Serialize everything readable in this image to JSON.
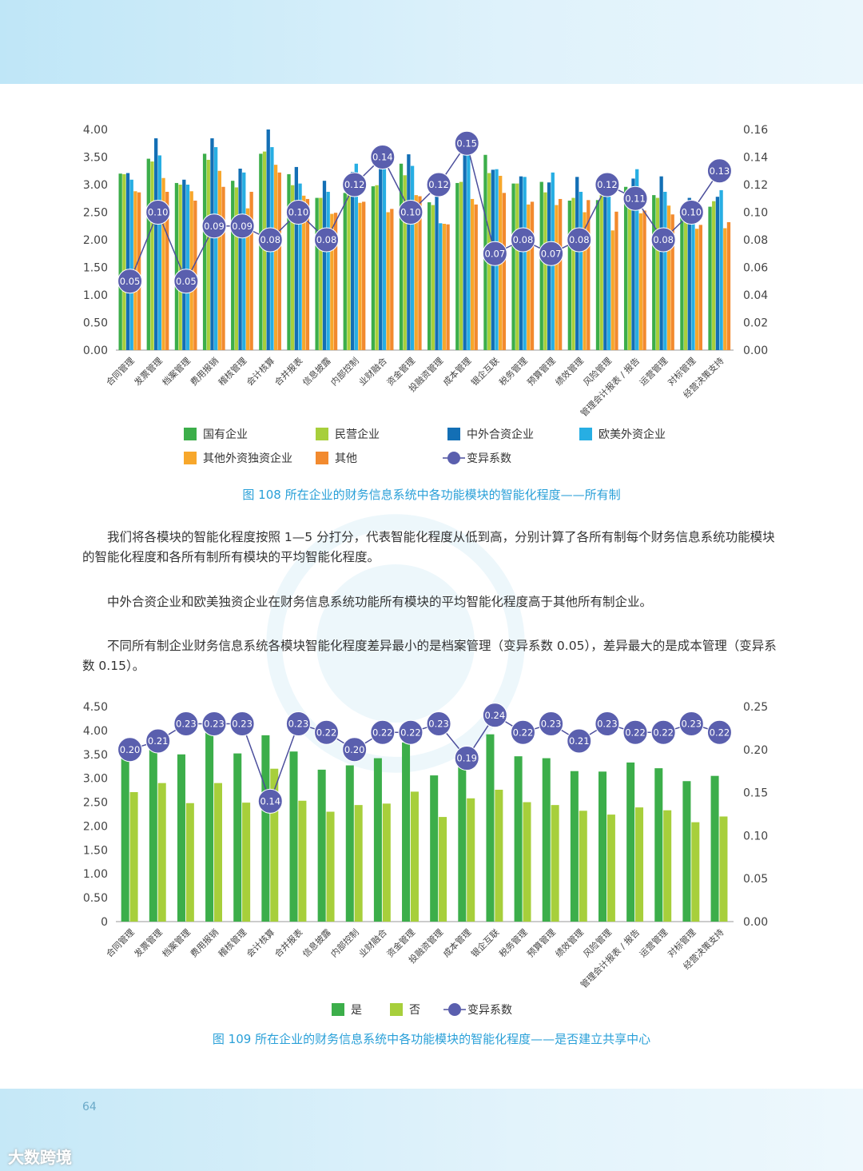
{
  "page_number": "64",
  "footer_logo": "大数跨境",
  "figure108": {
    "caption": "图 108   所在企业的财务信息系统中各功能模块的智能化程度——所有制"
  },
  "figure109": {
    "caption": "图 109   所在企业的财务信息系统中各功能模块的智能化程度——是否建立共享中心"
  },
  "paragraphs": [
    "我们将各模块的智能化程度按照 1—5 分打分，代表智能化程度从低到高，分别计算了各所有制每个财务信息系统功能模块的智能化程度和各所有制所有模块的平均智能化程度。",
    "中外合资企业和欧美独资企业在财务信息系统功能所有模块的平均智能化程度高于其他所有制企业。",
    "不同所有制企业财务信息系统各模块智能化程度差异最小的是档案管理（变异系数 0.05），差异最大的是成本管理（变异系数 0.15）。"
  ],
  "chart_data": [
    {
      "type": "bar",
      "title": "",
      "categories": [
        "合同管理",
        "发票管理",
        "档案管理",
        "费用报销",
        "稽核管理",
        "会计核算",
        "合并报表",
        "信息披露",
        "内部控制",
        "业财融合",
        "资金管理",
        "投融资管理",
        "成本管理",
        "银企互联",
        "税务管理",
        "预算管理",
        "绩效管理",
        "风险管理",
        "管理会计报表 / 报告",
        "运营管理",
        "对标管理",
        "经营决策支持"
      ],
      "ylim": [
        0,
        4
      ],
      "yticks": [
        "0.00",
        "0.50",
        "1.00",
        "1.50",
        "2.00",
        "2.50",
        "3.00",
        "3.50",
        "4.00"
      ],
      "y2lim": [
        0,
        0.16
      ],
      "y2ticks": [
        "0.00",
        "0.02",
        "0.04",
        "0.06",
        "0.08",
        "0.10",
        "0.12",
        "0.14",
        "0.16"
      ],
      "series": [
        {
          "name": "国有企业",
          "color": "#3cae4a",
          "values": [
            3.2,
            3.47,
            3.03,
            3.56,
            3.07,
            3.56,
            3.19,
            2.76,
            2.85,
            2.97,
            3.38,
            2.68,
            3.03,
            3.54,
            3.02,
            3.05,
            2.71,
            2.72,
            2.96,
            2.81,
            2.6,
            2.6
          ]
        },
        {
          "name": "民营企业",
          "color": "#a7cf3b",
          "values": [
            3.19,
            3.42,
            3.0,
            3.45,
            2.95,
            3.6,
            2.99,
            2.76,
            2.83,
            2.99,
            3.17,
            2.63,
            3.05,
            3.21,
            3.02,
            2.86,
            2.76,
            2.81,
            2.89,
            2.76,
            2.61,
            2.7
          ]
        },
        {
          "name": "中外合资企业",
          "color": "#136fb5",
          "values": [
            3.21,
            3.84,
            3.09,
            3.84,
            3.29,
            4.0,
            3.32,
            3.07,
            3.23,
            3.56,
            3.55,
            2.82,
            3.79,
            3.27,
            3.15,
            3.04,
            3.14,
            2.94,
            3.11,
            3.15,
            2.76,
            2.78
          ]
        },
        {
          "name": "欧美外资企业",
          "color": "#27aee3",
          "values": [
            3.09,
            3.53,
            3.0,
            3.68,
            3.22,
            3.68,
            3.02,
            2.87,
            3.38,
            3.6,
            3.34,
            2.3,
            3.6,
            3.28,
            3.14,
            3.22,
            2.87,
            3.0,
            3.28,
            2.87,
            2.71,
            2.9
          ]
        },
        {
          "name": "其他外资独资企业",
          "color": "#f7a72b",
          "values": [
            2.88,
            3.12,
            2.88,
            3.25,
            2.57,
            3.36,
            2.8,
            2.47,
            2.67,
            2.5,
            2.81,
            2.29,
            2.74,
            3.16,
            2.64,
            2.63,
            2.5,
            2.17,
            2.48,
            2.62,
            2.2,
            2.21
          ]
        },
        {
          "name": "其他",
          "color": "#f28a2e",
          "values": [
            2.86,
            2.87,
            2.71,
            2.96,
            2.87,
            3.22,
            2.74,
            2.49,
            2.69,
            2.56,
            2.79,
            2.28,
            2.64,
            2.85,
            2.69,
            2.74,
            2.72,
            2.51,
            2.53,
            2.46,
            2.27,
            2.32
          ]
        }
      ],
      "line": {
        "name": "变异系数",
        "color": "#4b4e9c",
        "values": [
          0.05,
          0.1,
          0.05,
          0.09,
          0.09,
          0.08,
          0.1,
          0.08,
          0.12,
          0.14,
          0.1,
          0.12,
          0.15,
          0.07,
          0.08,
          0.07,
          0.08,
          0.12,
          0.11,
          0.08,
          0.1,
          0.13
        ],
        "labels": [
          "0.05",
          "0.10",
          "0.05",
          "0.09",
          "0.09",
          "0.08",
          "0.10",
          "0.08",
          "0.12",
          "0.14",
          "0.10",
          "0.12",
          "0.15",
          "0.07",
          "0.08",
          "0.07",
          "0.08",
          "0.12",
          "0.11",
          "0.08",
          "0.10",
          "0.13"
        ]
      },
      "legend": "bottom"
    },
    {
      "type": "bar",
      "title": "",
      "categories": [
        "合同管理",
        "发票管理",
        "档案管理",
        "费用报销",
        "稽核管理",
        "会计核算",
        "合并报表",
        "信息披露",
        "内部控制",
        "业财融合",
        "资金管理",
        "投融资管理",
        "成本管理",
        "银企互联",
        "税务管理",
        "预算管理",
        "绩效管理",
        "风险管理",
        "管理会计报表 / 报告",
        "运营管理",
        "对标管理",
        "经营决策支持"
      ],
      "ylim": [
        0,
        4.5
      ],
      "yticks": [
        "0",
        "0.50",
        "1.00",
        "1.50",
        "2.00",
        "2.50",
        "3.00",
        "3.50",
        "4.00",
        "4.50"
      ],
      "y2lim": [
        0,
        0.25
      ],
      "y2ticks": [
        "0.00",
        "0.05",
        "0.10",
        "0.15",
        "0.20",
        "0.25"
      ],
      "series": [
        {
          "name": "是",
          "color": "#3cae4a",
          "values": [
            3.55,
            3.72,
            3.5,
            3.98,
            3.52,
            3.9,
            3.56,
            3.18,
            3.27,
            3.42,
            3.75,
            3.06,
            3.38,
            3.92,
            3.46,
            3.42,
            3.15,
            3.14,
            3.33,
            3.21,
            2.94,
            3.05
          ]
        },
        {
          "name": "否",
          "color": "#a7cf3b",
          "values": [
            2.71,
            2.9,
            2.48,
            2.9,
            2.49,
            3.2,
            2.53,
            2.3,
            2.44,
            2.47,
            2.72,
            2.19,
            2.58,
            2.76,
            2.5,
            2.44,
            2.32,
            2.24,
            2.39,
            2.33,
            2.08,
            2.2
          ]
        }
      ],
      "line": {
        "name": "变异系数",
        "color": "#4b4e9c",
        "values": [
          0.2,
          0.21,
          0.23,
          0.23,
          0.23,
          0.14,
          0.23,
          0.22,
          0.2,
          0.22,
          0.22,
          0.23,
          0.19,
          0.24,
          0.22,
          0.23,
          0.21,
          0.23,
          0.22,
          0.22,
          0.23,
          0.22
        ],
        "labels": [
          "0.20",
          "0.21",
          "0.23",
          "0.23",
          "0.23",
          "0.14",
          "0.23",
          "0.22",
          "0.20",
          "0.22",
          "0.22",
          "0.23",
          "0.19",
          "0.24",
          "0.22",
          "0.23",
          "0.21",
          "0.23",
          "0.22",
          "0.22",
          "0.23",
          "0.22"
        ]
      },
      "legend": "bottom"
    }
  ]
}
